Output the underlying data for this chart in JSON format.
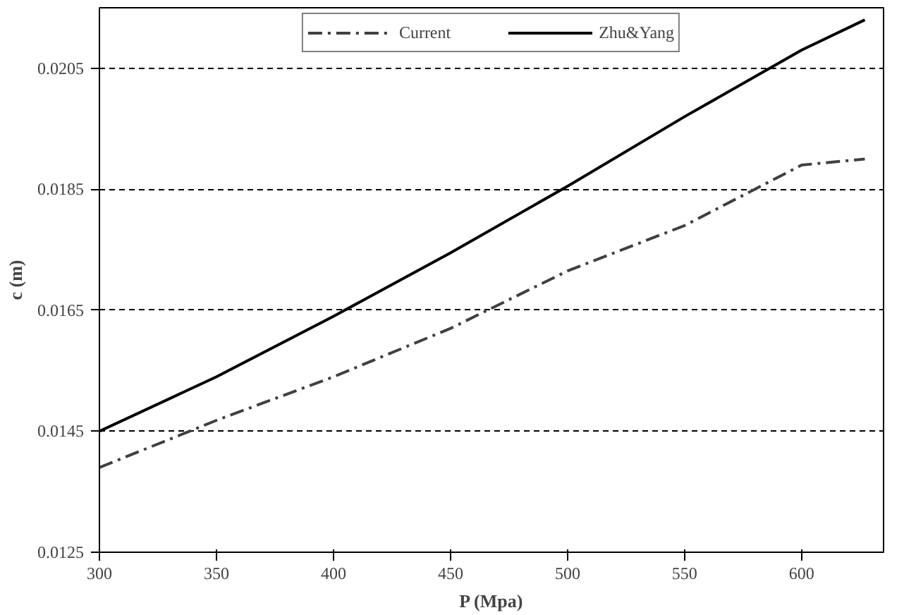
{
  "chart_data": {
    "type": "line",
    "xlabel": "P (Mpa)",
    "ylabel": "c (m)",
    "xlim": [
      300,
      635
    ],
    "ylim": [
      0.0125,
      0.0215
    ],
    "xticks": [
      300,
      350,
      400,
      450,
      500,
      550,
      600
    ],
    "yticks": [
      0.0125,
      0.0145,
      0.0165,
      0.0185,
      0.0205
    ],
    "grid": "y",
    "legend": "top",
    "x": [
      300,
      350,
      400,
      450,
      500,
      550,
      600,
      627
    ],
    "series": [
      {
        "name": "Current",
        "color": "#404040",
        "line_style": "dashdot",
        "values": [
          0.0139,
          0.01468,
          0.0154,
          0.0162,
          0.01715,
          0.0179,
          0.0189,
          0.019
        ]
      },
      {
        "name": "Zhu&Yang",
        "color": "#000000",
        "line_style": "solid",
        "values": [
          0.0145,
          0.0154,
          0.0164,
          0.01745,
          0.01855,
          0.0197,
          0.0208,
          0.0213
        ]
      }
    ]
  }
}
